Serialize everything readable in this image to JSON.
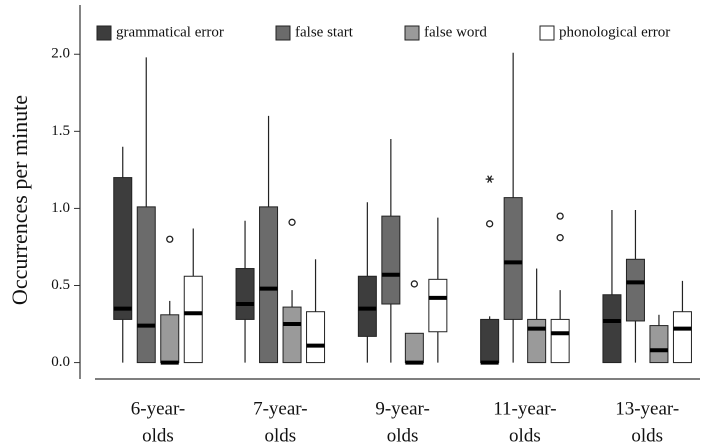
{
  "chart_data": {
    "type": "box",
    "ylabel": "Occurrences per minute",
    "categories": [
      [
        "6-year-",
        "olds"
      ],
      [
        "7-year-",
        "olds"
      ],
      [
        "9-year-",
        "olds"
      ],
      [
        "11-year-",
        "olds"
      ],
      [
        "13-year-",
        "olds"
      ]
    ],
    "ylim": [
      -0.1,
      2.3
    ],
    "yticks": [
      {
        "value": 0,
        "label": "0.0"
      },
      0.5,
      {
        "value": 1,
        "label": "1.0"
      },
      1.5,
      {
        "value": 2,
        "label": "2.0"
      }
    ],
    "legend": "top",
    "series": [
      {
        "name": "grammatical error",
        "color": "#3d3d3d",
        "values": [
          {
            "whislo": 0,
            "q1": 0.28,
            "med": 0.35,
            "q3": 1.2,
            "whishi": 1.4
          },
          {
            "whislo": 0,
            "q1": 0.28,
            "med": 0.38,
            "q3": 0.61,
            "whishi": 0.92
          },
          {
            "whislo": 0,
            "q1": 0.17,
            "med": 0.35,
            "q3": 0.56,
            "whishi": 1.04
          },
          {
            "whislo": 0,
            "q1": 0,
            "med": 0,
            "q3": 0.28,
            "whishi": 0.3,
            "fliers": [
              0.9
            ],
            "extremes": [
              1.19
            ]
          },
          {
            "whislo": 0,
            "q1": 0,
            "med": 0.27,
            "q3": 0.44,
            "whishi": 0.99
          }
        ]
      },
      {
        "name": "false start",
        "color": "#6b6b6b",
        "values": [
          {
            "whislo": 0,
            "q1": 0,
            "med": 0.24,
            "q3": 1.01,
            "whishi": 1.98
          },
          {
            "whislo": 0,
            "q1": 0,
            "med": 0.48,
            "q3": 1.01,
            "whishi": 1.6
          },
          {
            "whislo": 0,
            "q1": 0.38,
            "med": 0.57,
            "q3": 0.95,
            "whishi": 1.45
          },
          {
            "whislo": 0,
            "q1": 0.28,
            "med": 0.65,
            "q3": 1.07,
            "whishi": 2.01
          },
          {
            "whislo": 0,
            "q1": 0.27,
            "med": 0.52,
            "q3": 0.67,
            "whishi": 0.99
          }
        ]
      },
      {
        "name": "false word",
        "color": "#9a9a9a",
        "values": [
          {
            "whislo": 0,
            "q1": 0,
            "med": 0,
            "q3": 0.31,
            "whishi": 0.4,
            "fliers": [
              0.8
            ]
          },
          {
            "whislo": 0,
            "q1": 0,
            "med": 0.25,
            "q3": 0.36,
            "whishi": 0.47,
            "fliers": [
              0.91
            ]
          },
          {
            "whislo": 0,
            "q1": 0,
            "med": 0,
            "q3": 0.19,
            "whishi": 0.19,
            "fliers": [
              0.51
            ]
          },
          {
            "whislo": 0,
            "q1": 0,
            "med": 0.22,
            "q3": 0.28,
            "whishi": 0.61
          },
          {
            "whislo": 0,
            "q1": 0,
            "med": 0.08,
            "q3": 0.24,
            "whishi": 0.31
          }
        ]
      },
      {
        "name": "phonological error",
        "color": "#ffffff",
        "values": [
          {
            "whislo": 0,
            "q1": 0,
            "med": 0.32,
            "q3": 0.56,
            "whishi": 0.87
          },
          {
            "whislo": 0,
            "q1": 0,
            "med": 0.11,
            "q3": 0.33,
            "whishi": 0.67
          },
          {
            "whislo": 0,
            "q1": 0.2,
            "med": 0.42,
            "q3": 0.54,
            "whishi": 0.94
          },
          {
            "whislo": 0,
            "q1": 0,
            "med": 0.19,
            "q3": 0.28,
            "whishi": 0.47,
            "fliers": [
              0.81,
              0.95
            ]
          },
          {
            "whislo": 0,
            "q1": 0,
            "med": 0.22,
            "q3": 0.33,
            "whishi": 0.53
          }
        ]
      }
    ]
  }
}
